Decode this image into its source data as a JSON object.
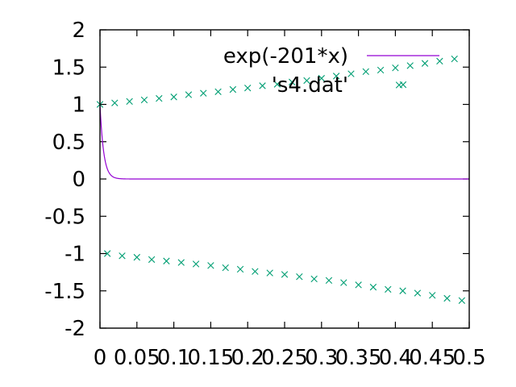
{
  "chart_data": {
    "type": "line",
    "title": "",
    "xlabel": "",
    "ylabel": "",
    "xlim": [
      0,
      0.5
    ],
    "ylim": [
      -2,
      2
    ],
    "x_ticks": [
      0,
      0.05,
      0.1,
      0.15,
      0.2,
      0.25,
      0.3,
      0.35,
      0.4,
      0.45,
      0.5
    ],
    "x_tick_labels": [
      "0",
      "0.05",
      "0.1",
      "0.15",
      "0.2",
      "0.25",
      "0.3",
      "0.35",
      "0.4",
      "0.45",
      "0.5"
    ],
    "y_ticks": [
      -2,
      -1.5,
      -1,
      -0.5,
      0,
      0.5,
      1,
      1.5,
      2
    ],
    "y_tick_labels": [
      "-2",
      "-1.5",
      "-1",
      "-0.5",
      "0",
      "0.5",
      "1",
      "1.5",
      "2"
    ],
    "grid": false,
    "legend_position": "top-right",
    "series": [
      {
        "name": "exp(-201*x)",
        "kind": "line",
        "color": "#9400d3",
        "function": {
          "type": "exponential",
          "amplitude": 1,
          "rate": -201
        },
        "x_range": [
          0,
          0.5
        ]
      },
      {
        "name": "'s4.dat'",
        "kind": "scatter",
        "color": "#009e73",
        "marker": "x",
        "points": [
          [
            0,
            1.0
          ],
          [
            0.02,
            1.02
          ],
          [
            0.04,
            1.04
          ],
          [
            0.06,
            1.06
          ],
          [
            0.08,
            1.08
          ],
          [
            0.1,
            1.1
          ],
          [
            0.12,
            1.13
          ],
          [
            0.14,
            1.15
          ],
          [
            0.16,
            1.17
          ],
          [
            0.18,
            1.2
          ],
          [
            0.2,
            1.22
          ],
          [
            0.22,
            1.25
          ],
          [
            0.24,
            1.27
          ],
          [
            0.26,
            1.3
          ],
          [
            0.28,
            1.32
          ],
          [
            0.3,
            1.35
          ],
          [
            0.32,
            1.38
          ],
          [
            0.34,
            1.41
          ],
          [
            0.36,
            1.44
          ],
          [
            0.38,
            1.46
          ],
          [
            0.4,
            1.49
          ],
          [
            0.405,
            1.26
          ],
          [
            0.42,
            1.52
          ],
          [
            0.44,
            1.55
          ],
          [
            0.46,
            1.58
          ],
          [
            0.48,
            1.61
          ],
          [
            0.01,
            -1.0
          ],
          [
            0.03,
            -1.03
          ],
          [
            0.05,
            -1.05
          ],
          [
            0.07,
            -1.08
          ],
          [
            0.09,
            -1.1
          ],
          [
            0.11,
            -1.12
          ],
          [
            0.13,
            -1.14
          ],
          [
            0.15,
            -1.16
          ],
          [
            0.17,
            -1.19
          ],
          [
            0.19,
            -1.21
          ],
          [
            0.21,
            -1.24
          ],
          [
            0.23,
            -1.26
          ],
          [
            0.25,
            -1.28
          ],
          [
            0.27,
            -1.31
          ],
          [
            0.29,
            -1.34
          ],
          [
            0.31,
            -1.36
          ],
          [
            0.33,
            -1.39
          ],
          [
            0.35,
            -1.42
          ],
          [
            0.37,
            -1.45
          ],
          [
            0.39,
            -1.48
          ],
          [
            0.41,
            -1.5
          ],
          [
            0.43,
            -1.53
          ],
          [
            0.45,
            -1.56
          ],
          [
            0.47,
            -1.6
          ],
          [
            0.49,
            -1.63
          ]
        ]
      }
    ]
  }
}
